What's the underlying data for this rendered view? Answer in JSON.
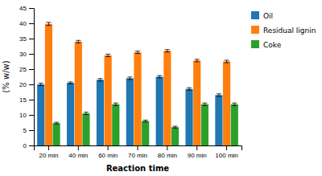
{
  "chart_data": {
    "type": "bar",
    "xlabel": "Reaction time",
    "ylabel": "(% w/w)",
    "categories": [
      "20 min",
      "40 min",
      "60 min",
      "70 min",
      "80 min",
      "90 min",
      "100 min"
    ],
    "series": [
      {
        "name": "Oil",
        "values": [
          20.0,
          20.5,
          21.5,
          22.0,
          22.5,
          18.5,
          16.5
        ],
        "errors": [
          0.4,
          0.3,
          0.4,
          0.4,
          0.4,
          0.4,
          0.4
        ]
      },
      {
        "name": "Residual lignin",
        "values": [
          39.8,
          34.0,
          29.5,
          30.5,
          31.0,
          27.8,
          27.5
        ],
        "errors": [
          0.5,
          0.4,
          0.4,
          0.4,
          0.4,
          0.4,
          0.4
        ]
      },
      {
        "name": "Coke",
        "values": [
          7.3,
          10.5,
          13.5,
          8.0,
          6.0,
          13.5,
          13.5
        ],
        "errors": [
          0.3,
          0.4,
          0.4,
          0.3,
          0.3,
          0.4,
          0.4
        ]
      }
    ],
    "ylim": [
      0,
      45
    ],
    "yticks": [
      0,
      5,
      10,
      15,
      20,
      25,
      30,
      35,
      40,
      45
    ],
    "grid": false,
    "legend": "right"
  }
}
